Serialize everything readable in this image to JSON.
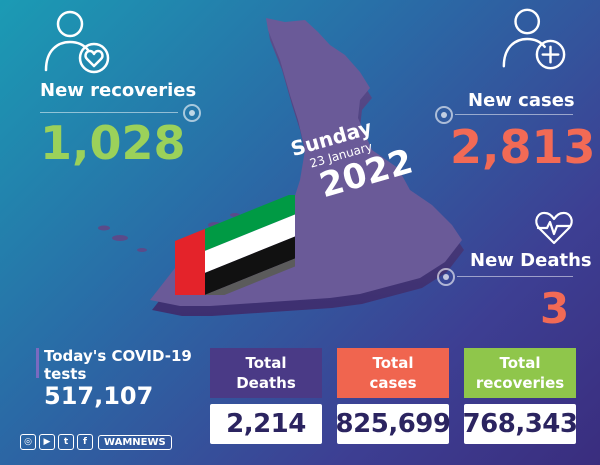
{
  "recoveries": {
    "label": "New recoveries",
    "value": "1,028",
    "color": "#9bd15a"
  },
  "cases": {
    "label": "New cases",
    "value": "2,813",
    "color": "#f26a55"
  },
  "deaths": {
    "label": "New Deaths",
    "value": "3",
    "color": "#f26a55"
  },
  "date": {
    "day": "Sunday",
    "daymonth": "23 January",
    "year": "2022"
  },
  "tests": {
    "label_line1": "Today's COVID-19",
    "label_line2": "tests",
    "value": "517,107"
  },
  "totals": [
    {
      "label_line1": "Total",
      "label_line2": "Deaths",
      "value": "2,214",
      "color": "#4a3a86"
    },
    {
      "label_line1": "Total",
      "label_line2": "cases",
      "value": "825,699",
      "color": "#f0654f"
    },
    {
      "label_line1": "Total",
      "label_line2": "recoveries",
      "value": "768,343",
      "color": "#8fc64b"
    }
  ],
  "footer": {
    "brand": "WAMNEWS",
    "icons": [
      "instagram-icon",
      "youtube-icon",
      "twitter-icon",
      "facebook-icon"
    ]
  }
}
